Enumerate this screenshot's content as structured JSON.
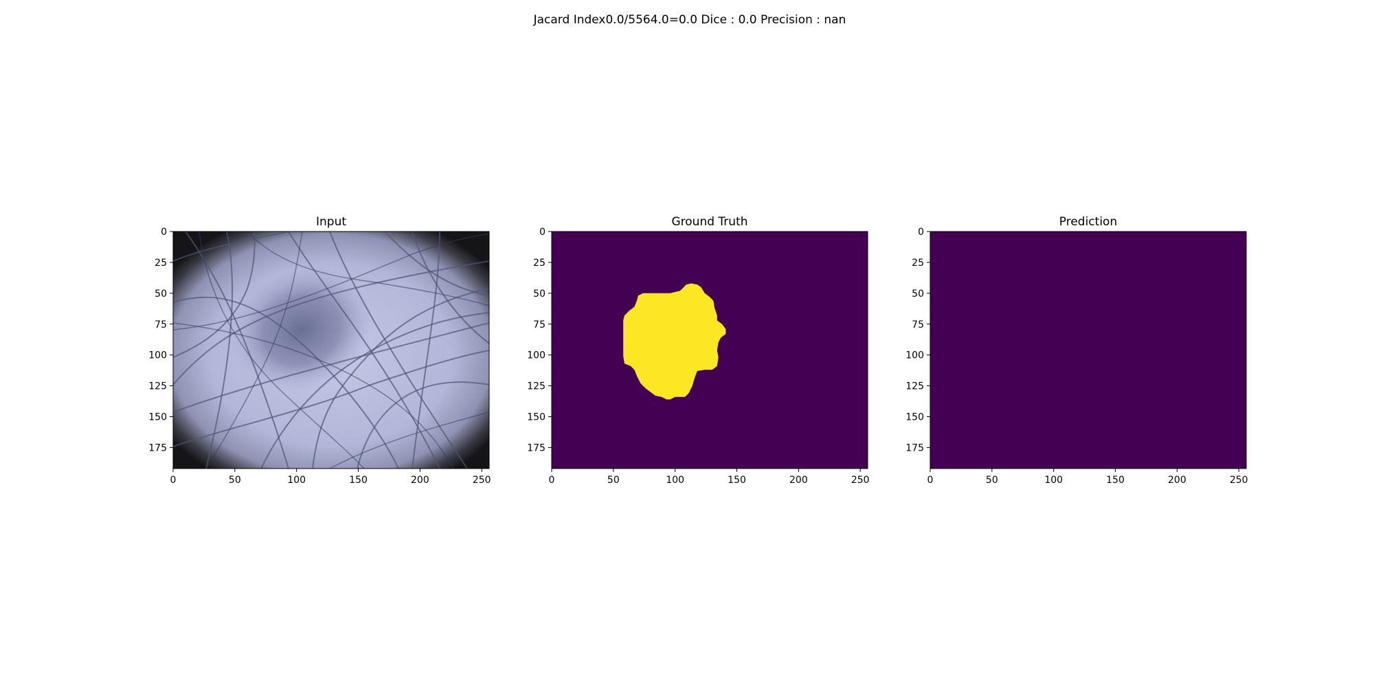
{
  "figure": {
    "suptitle": "Jacard Index0.0/5564.0=0.0 Dice : 0.0 Precision : nan"
  },
  "chart_data": [
    {
      "type": "image",
      "title": "Input",
      "content": "dermoscopy photograph",
      "image_size": [
        256,
        192
      ],
      "xticks": [
        0,
        50,
        100,
        150,
        200,
        250
      ],
      "yticks": [
        0,
        25,
        50,
        75,
        100,
        125,
        150,
        175
      ],
      "xlim": [
        0,
        256
      ],
      "ylim": [
        192,
        0
      ]
    },
    {
      "type": "heatmap",
      "title": "Ground Truth",
      "colormap": "viridis",
      "background_color": "#440154",
      "mask_color": "#fde725",
      "image_size": [
        256,
        192
      ],
      "xticks": [
        0,
        50,
        100,
        150,
        200,
        250
      ],
      "yticks": [
        0,
        25,
        50,
        75,
        100,
        125,
        150,
        175
      ],
      "xlim": [
        0,
        256
      ],
      "ylim": [
        192,
        0
      ],
      "mask_outline": [
        [
          59,
          68
        ],
        [
          63,
          64
        ],
        [
          67,
          61
        ],
        [
          69,
          56
        ],
        [
          70,
          52
        ],
        [
          74,
          50
        ],
        [
          82,
          50
        ],
        [
          96,
          50
        ],
        [
          100,
          49
        ],
        [
          104,
          48
        ],
        [
          106,
          46
        ],
        [
          109,
          43
        ],
        [
          113,
          42
        ],
        [
          118,
          43
        ],
        [
          121,
          45
        ],
        [
          124,
          50
        ],
        [
          128,
          53
        ],
        [
          131,
          56
        ],
        [
          132,
          62
        ],
        [
          134,
          68
        ],
        [
          134,
          72
        ],
        [
          138,
          75
        ],
        [
          141,
          79
        ],
        [
          141,
          83
        ],
        [
          137,
          86
        ],
        [
          135,
          90
        ],
        [
          134,
          96
        ],
        [
          135,
          102
        ],
        [
          134,
          109
        ],
        [
          130,
          112
        ],
        [
          124,
          112
        ],
        [
          118,
          113
        ],
        [
          116,
          118
        ],
        [
          114,
          125
        ],
        [
          111,
          131
        ],
        [
          108,
          134
        ],
        [
          100,
          134
        ],
        [
          96,
          136
        ],
        [
          93,
          136
        ],
        [
          89,
          134
        ],
        [
          84,
          133
        ],
        [
          80,
          130
        ],
        [
          76,
          127
        ],
        [
          72,
          123
        ],
        [
          69,
          117
        ],
        [
          67,
          112
        ],
        [
          64,
          109
        ],
        [
          59,
          107
        ],
        [
          58,
          101
        ],
        [
          58,
          90
        ],
        [
          58,
          80
        ],
        [
          58,
          72
        ]
      ]
    },
    {
      "type": "heatmap",
      "title": "Prediction",
      "colormap": "viridis",
      "background_color": "#440154",
      "image_size": [
        256,
        192
      ],
      "xticks": [
        0,
        50,
        100,
        150,
        200,
        250
      ],
      "yticks": [
        0,
        25,
        50,
        75,
        100,
        125,
        150,
        175
      ],
      "xlim": [
        0,
        256
      ],
      "ylim": [
        192,
        0
      ]
    }
  ]
}
